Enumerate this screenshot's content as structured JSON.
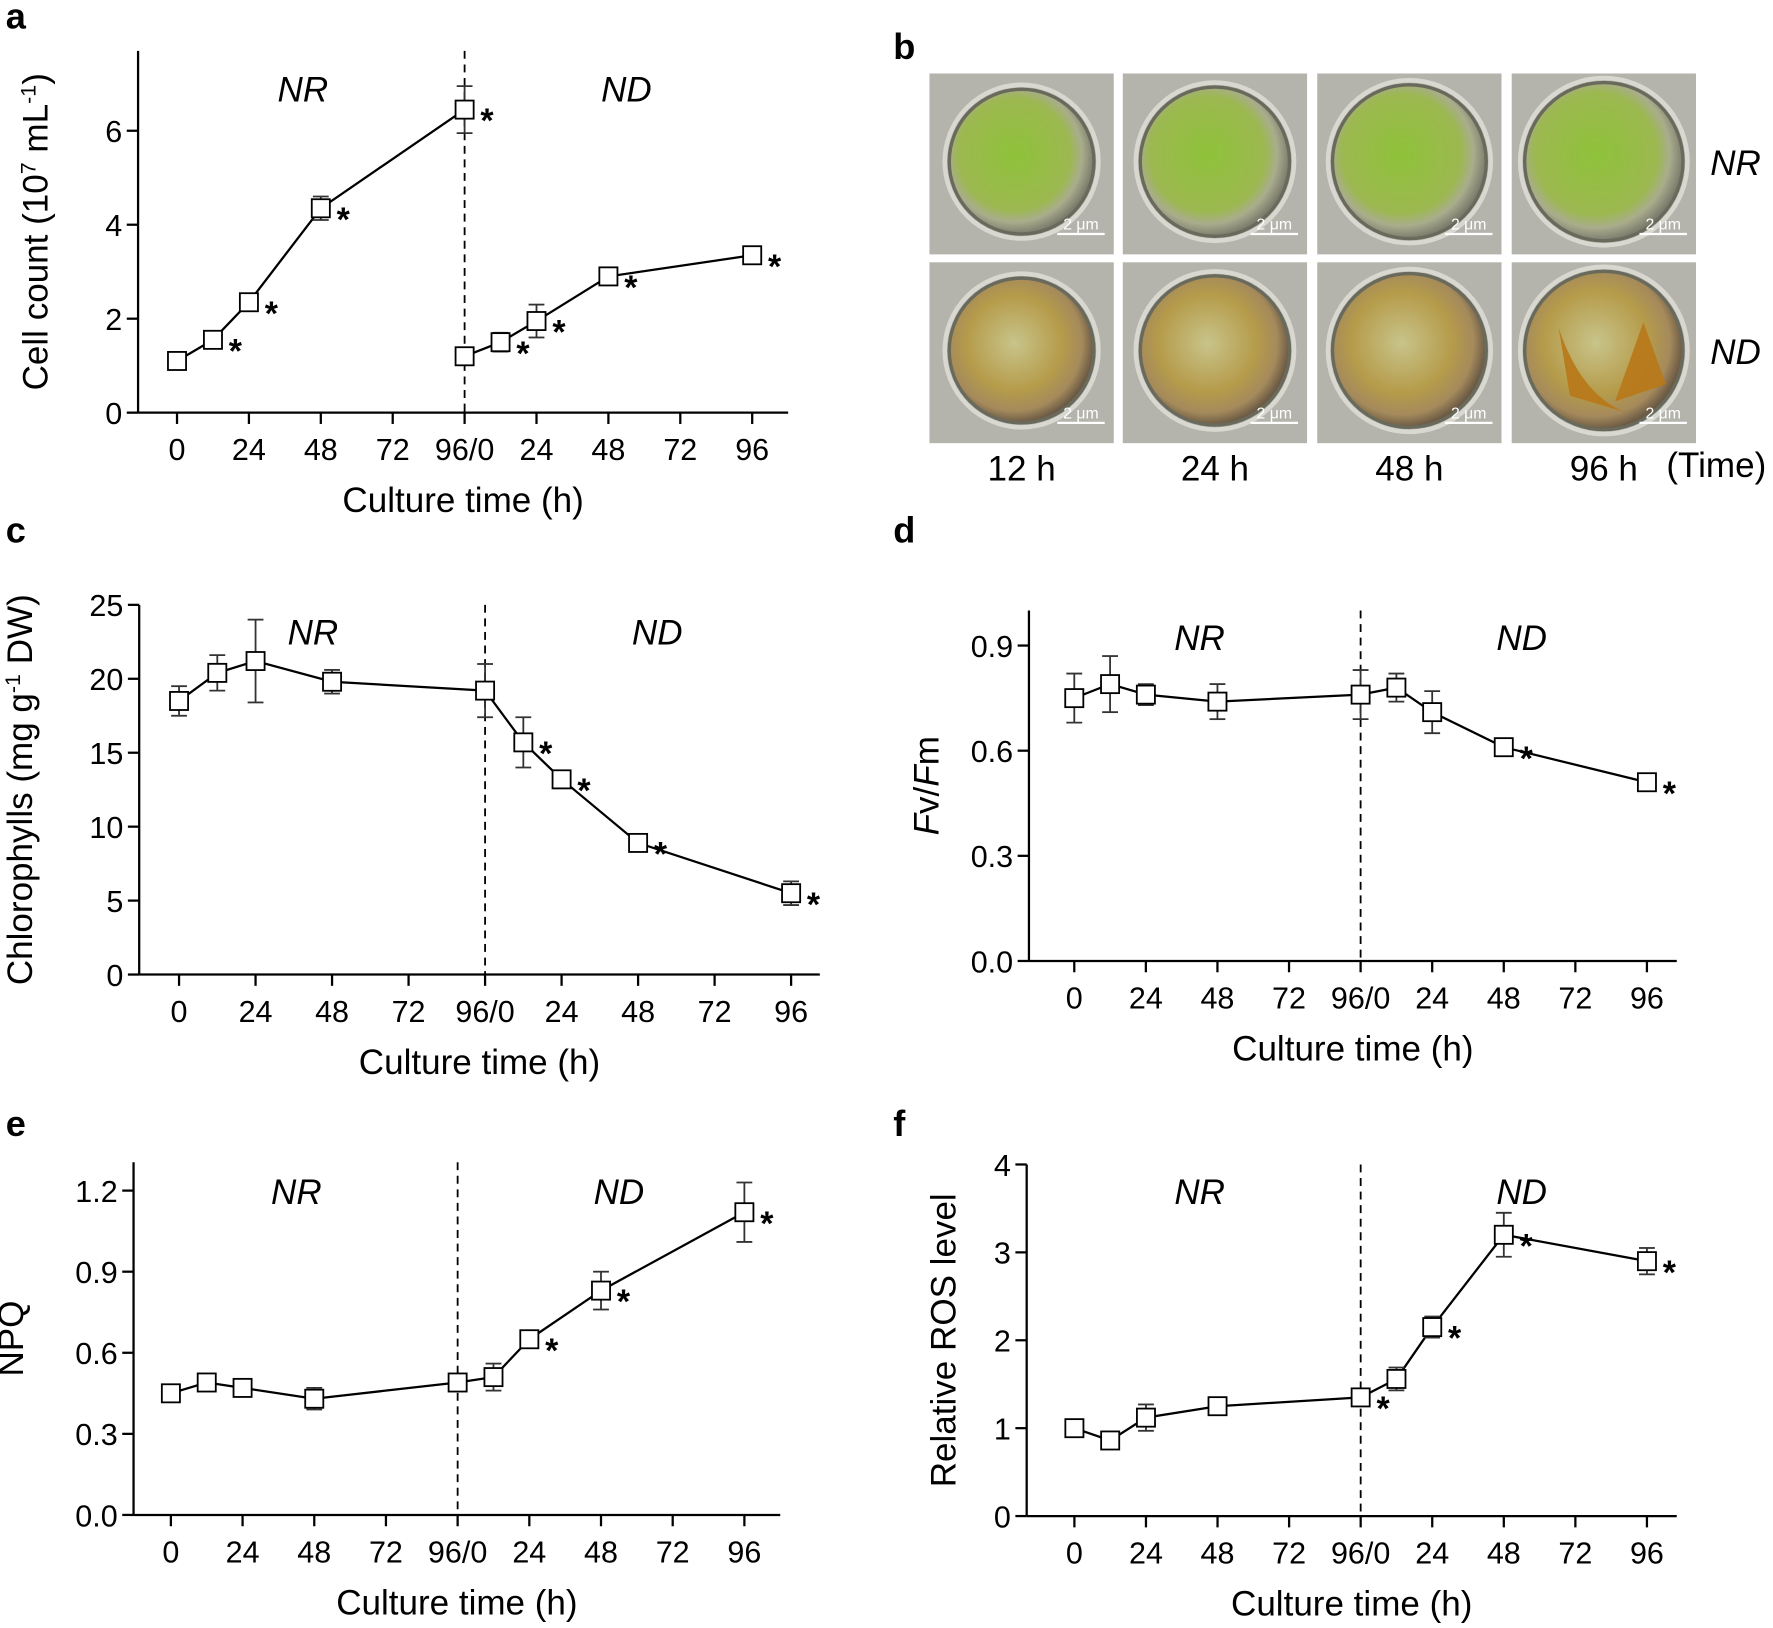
{
  "chart_data": [
    {
      "type": "line",
      "panel_label": "a",
      "xlabel": "Culture time (h)",
      "ylabel": [
        {
          "text": "Cell count (10"
        },
        {
          "text": "7",
          "sup": true
        },
        {
          "text": " mL"
        },
        {
          "text": "-1",
          "sup": true
        },
        {
          "text": ")"
        }
      ],
      "annotations": [
        "NR",
        "ND"
      ],
      "divider": 96,
      "x": [
        0,
        12,
        24,
        48,
        96,
        96,
        96,
        108,
        120,
        144,
        192
      ],
      "values": [
        1.1,
        1.55,
        2.35,
        4.35,
        6.45,
        null,
        1.2,
        1.5,
        1.95,
        2.9,
        3.35
      ],
      "errors": [
        0.1,
        0.08,
        0.1,
        0.25,
        0.5,
        null,
        0.1,
        0.2,
        0.35,
        0.15,
        0.1
      ],
      "sig_labels": [
        null,
        "*",
        "*",
        "*",
        "*",
        null,
        null,
        "*",
        "*",
        "*",
        "*"
      ],
      "color": "#000000",
      "xlim": [
        -13,
        204
      ],
      "ylim": [
        0,
        7.7
      ],
      "xticks": [
        0,
        24,
        48,
        72,
        {
          "value": 96,
          "label": "96/0"
        },
        {
          "value": 120,
          "label": "24"
        },
        {
          "value": 144,
          "label": "48"
        },
        {
          "value": 168,
          "label": "72"
        },
        {
          "value": 192,
          "label": "96"
        }
      ],
      "yticks": [
        0,
        2,
        4,
        6
      ]
    },
    {
      "type": "line",
      "panel_label": "c",
      "xlabel": "Culture time (h)",
      "ylabel": [
        {
          "text": "Chlorophylls (mg g"
        },
        {
          "text": "-1",
          "sup": true
        },
        {
          "text": " DW)"
        }
      ],
      "annotations": [
        "NR",
        "ND"
      ],
      "divider": 96,
      "x": [
        0,
        12,
        24,
        48,
        96,
        108,
        120,
        144,
        192
      ],
      "values": [
        18.5,
        20.4,
        21.2,
        19.8,
        19.2,
        15.7,
        13.2,
        8.9,
        5.5
      ],
      "errors": [
        1,
        1.2,
        2.8,
        0.8,
        1.8,
        1.7,
        0.6,
        0.3,
        0.8
      ],
      "sig_labels": [
        null,
        null,
        null,
        null,
        null,
        "*",
        "*",
        "*",
        "*"
      ],
      "color": "#000000",
      "xlim": [
        -12.5,
        201
      ],
      "ylim": [
        0,
        25
      ],
      "xticks": [
        0,
        24,
        48,
        72,
        {
          "value": 96,
          "label": "96/0"
        },
        {
          "value": 120,
          "label": "24"
        },
        {
          "value": 144,
          "label": "48"
        },
        {
          "value": 168,
          "label": "72"
        },
        {
          "value": 192,
          "label": "96"
        }
      ],
      "yticks": [
        0,
        5,
        10,
        15,
        20,
        25
      ]
    },
    {
      "type": "line",
      "panel_label": "d",
      "xlabel": "Culture time (h)",
      "ylabel": [
        {
          "text": "F",
          "italic": true
        },
        {
          "text": "v/"
        },
        {
          "text": "F",
          "italic": true
        },
        {
          "text": "m"
        }
      ],
      "annotations": [
        "NR",
        "ND"
      ],
      "divider": 96,
      "x": [
        0,
        12,
        24,
        48,
        96,
        108,
        120,
        144,
        192
      ],
      "values": [
        0.75,
        0.79,
        0.76,
        0.74,
        0.76,
        0.78,
        0.71,
        0.61,
        0.51
      ],
      "errors": [
        0.07,
        0.08,
        0.03,
        0.05,
        0.07,
        0.04,
        0.06,
        0.01,
        0.02
      ],
      "sig_labels": [
        null,
        null,
        null,
        null,
        null,
        null,
        null,
        "*",
        "*"
      ],
      "color": "#000000",
      "xlim": [
        -15.2,
        202
      ],
      "ylim": [
        0,
        1.0
      ],
      "xticks": [
        0,
        24,
        48,
        72,
        {
          "value": 96,
          "label": "96/0"
        },
        {
          "value": 120,
          "label": "24"
        },
        {
          "value": 144,
          "label": "48"
        },
        {
          "value": 168,
          "label": "72"
        },
        {
          "value": 192,
          "label": "96"
        }
      ],
      "yticks": [
        {
          "value": 0,
          "label": "0.0"
        },
        0.3,
        0.6,
        0.9
      ]
    },
    {
      "type": "line",
      "panel_label": "e",
      "xlabel": "Culture time (h)",
      "ylabel": [
        {
          "text": "NPQ"
        }
      ],
      "annotations": [
        "NR",
        "ND"
      ],
      "divider": 96,
      "x": [
        0,
        12,
        24,
        48,
        96,
        108,
        120,
        144,
        192
      ],
      "values": [
        0.45,
        0.49,
        0.47,
        0.43,
        0.49,
        0.51,
        0.65,
        0.83,
        1.12
      ],
      "errors": [
        0.02,
        0.02,
        0.03,
        0.04,
        0.03,
        0.05,
        0.03,
        0.07,
        0.11
      ],
      "sig_labels": [
        null,
        null,
        null,
        null,
        null,
        null,
        "*",
        "*",
        "*"
      ],
      "color": "#000000",
      "xlim": [
        -12.5,
        204
      ],
      "ylim": [
        0,
        1.305
      ],
      "xticks": [
        0,
        24,
        48,
        72,
        {
          "value": 96,
          "label": "96/0"
        },
        {
          "value": 120,
          "label": "24"
        },
        {
          "value": 144,
          "label": "48"
        },
        {
          "value": 168,
          "label": "72"
        },
        {
          "value": 192,
          "label": "96"
        }
      ],
      "yticks": [
        {
          "value": 0,
          "label": "0.0"
        },
        0.3,
        0.6,
        0.9,
        1.2
      ]
    },
    {
      "type": "line",
      "panel_label": "f",
      "xlabel": "Culture time (h)",
      "ylabel": [
        {
          "text": "Relative ROS level"
        }
      ],
      "annotations": [
        "NR",
        "ND"
      ],
      "divider": 96,
      "x": [
        0,
        12,
        24,
        48,
        96,
        108,
        120,
        144,
        192
      ],
      "values": [
        1.0,
        0.86,
        1.12,
        1.25,
        1.35,
        1.56,
        2.15,
        3.2,
        2.9
      ],
      "errors": [
        0.06,
        0.04,
        0.15,
        0.04,
        0.06,
        0.13,
        0.12,
        0.25,
        0.15
      ],
      "sig_labels": [
        null,
        null,
        null,
        null,
        "*",
        null,
        "*",
        "*",
        "*"
      ],
      "color": "#000000",
      "xlim": [
        -16,
        202
      ],
      "ylim": [
        0,
        4
      ],
      "xticks": [
        0,
        24,
        48,
        72,
        {
          "value": 96,
          "label": "96/0"
        },
        {
          "value": 120,
          "label": "24"
        },
        {
          "value": 144,
          "label": "48"
        },
        {
          "value": 168,
          "label": "72"
        },
        {
          "value": 192,
          "label": "96"
        }
      ],
      "yticks": [
        0,
        1,
        2,
        3,
        4
      ]
    }
  ],
  "micrographs": {
    "panel_label": "b",
    "rows": [
      "NR",
      "ND"
    ],
    "columns": [
      "12 h",
      "24 h",
      "48 h",
      "96 h"
    ],
    "time_label": "(Time)",
    "scale_bar": "2 μm"
  }
}
